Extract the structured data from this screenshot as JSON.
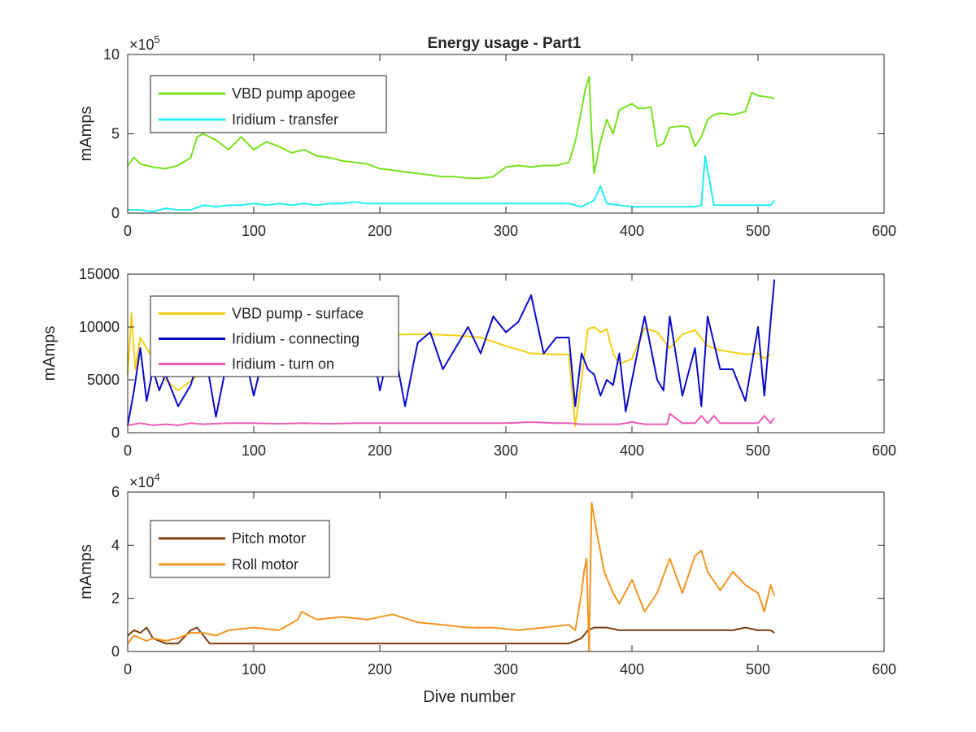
{
  "title": "Energy usage - Part1",
  "colors": {
    "vbd_apogee": "#77e21f",
    "iridium_transfer": "#22eeee",
    "vbd_surface": "#f2d014",
    "iridium_connecting": "#0a0acc",
    "iridium_turn_on": "#e85fb6",
    "pitch_motor": "#7a3e12",
    "roll_motor": "#f29520",
    "axis": "#262626"
  },
  "chart_data": [
    {
      "type": "line",
      "title": "Energy usage - Part1",
      "xlabel": "",
      "ylabel": "mAmps",
      "exponent_label": "×10",
      "exponent_power": "5",
      "xlim": [
        0,
        600
      ],
      "ylim": [
        0,
        10
      ],
      "xticks": [
        "0",
        "100",
        "200",
        "300",
        "400",
        "500",
        "600"
      ],
      "yticks": [
        "0",
        "5",
        "10"
      ],
      "legend_position": "top-left",
      "series": [
        {
          "name": "VBD pump apogee",
          "color_key": "vbd_apogee",
          "x": [
            0,
            5,
            10,
            20,
            30,
            40,
            50,
            55,
            60,
            70,
            80,
            90,
            100,
            110,
            120,
            130,
            140,
            150,
            160,
            170,
            180,
            190,
            200,
            210,
            220,
            230,
            240,
            250,
            260,
            270,
            280,
            290,
            300,
            310,
            320,
            330,
            340,
            350,
            355,
            360,
            363,
            366,
            368,
            370,
            375,
            380,
            385,
            390,
            395,
            400,
            405,
            410,
            415,
            420,
            425,
            430,
            440,
            445,
            450,
            455,
            460,
            465,
            470,
            480,
            490,
            495,
            500,
            510,
            513
          ],
          "y": [
            3.0,
            3.5,
            3.1,
            2.9,
            2.8,
            3.0,
            3.5,
            4.8,
            5.0,
            4.6,
            4.0,
            4.8,
            4.0,
            4.5,
            4.2,
            3.8,
            4.0,
            3.6,
            3.5,
            3.3,
            3.2,
            3.1,
            2.8,
            2.7,
            2.6,
            2.5,
            2.4,
            2.3,
            2.3,
            2.2,
            2.2,
            2.3,
            2.9,
            3.0,
            2.9,
            3.0,
            3.0,
            3.2,
            4.5,
            6.5,
            7.8,
            8.6,
            5.0,
            2.5,
            4.5,
            5.9,
            5.0,
            6.5,
            6.7,
            6.9,
            6.6,
            6.6,
            6.7,
            4.2,
            4.4,
            5.4,
            5.5,
            5.4,
            4.2,
            4.8,
            5.9,
            6.2,
            6.3,
            6.2,
            6.4,
            7.6,
            7.4,
            7.3,
            7.2
          ]
        },
        {
          "name": "Iridium - transfer",
          "color_key": "iridium_transfer",
          "x": [
            0,
            10,
            20,
            30,
            40,
            50,
            60,
            70,
            80,
            90,
            100,
            110,
            120,
            130,
            140,
            150,
            160,
            170,
            180,
            190,
            200,
            210,
            220,
            230,
            240,
            250,
            260,
            270,
            280,
            290,
            300,
            310,
            320,
            330,
            340,
            350,
            360,
            370,
            375,
            380,
            390,
            400,
            420,
            440,
            450,
            455,
            458,
            465,
            480,
            500,
            510,
            513
          ],
          "y": [
            0.2,
            0.2,
            0.1,
            0.3,
            0.2,
            0.2,
            0.5,
            0.4,
            0.5,
            0.5,
            0.6,
            0.5,
            0.6,
            0.5,
            0.6,
            0.5,
            0.6,
            0.6,
            0.7,
            0.6,
            0.6,
            0.6,
            0.6,
            0.6,
            0.6,
            0.6,
            0.6,
            0.6,
            0.6,
            0.6,
            0.6,
            0.6,
            0.6,
            0.6,
            0.6,
            0.6,
            0.4,
            0.8,
            1.7,
            0.6,
            0.5,
            0.4,
            0.4,
            0.4,
            0.4,
            0.5,
            3.6,
            0.5,
            0.5,
            0.5,
            0.5,
            0.8
          ]
        }
      ]
    },
    {
      "type": "line",
      "title": "",
      "xlabel": "",
      "ylabel": "mAmps",
      "xlim": [
        0,
        600
      ],
      "ylim": [
        0,
        15000
      ],
      "xticks": [
        "0",
        "100",
        "200",
        "300",
        "400",
        "500",
        "600"
      ],
      "yticks": [
        "0",
        "5000",
        "10000",
        "15000"
      ],
      "legend_position": "top-left",
      "series": [
        {
          "name": "VBD pump - surface",
          "color_key": "vbd_surface",
          "x": [
            0,
            3,
            6,
            10,
            20,
            30,
            40,
            60,
            80,
            100,
            120,
            140,
            160,
            180,
            200,
            220,
            240,
            260,
            280,
            300,
            320,
            340,
            350,
            355,
            360,
            365,
            370,
            375,
            380,
            385,
            390,
            400,
            410,
            420,
            430,
            440,
            450,
            460,
            470,
            480,
            490,
            500,
            505,
            510
          ],
          "y": [
            5500,
            11300,
            6000,
            9000,
            7000,
            5000,
            4000,
            5800,
            6500,
            7500,
            8000,
            7500,
            8500,
            9000,
            9200,
            9300,
            9300,
            9200,
            9000,
            8200,
            7500,
            7400,
            7400,
            600,
            5000,
            9800,
            10000,
            9500,
            9800,
            7500,
            6500,
            7000,
            9900,
            9500,
            8000,
            9300,
            9700,
            8200,
            7800,
            7600,
            7400,
            7500,
            7000,
            7400
          ]
        },
        {
          "name": "Iridium - connecting",
          "color_key": "iridium_connecting",
          "x": [
            0,
            5,
            10,
            15,
            20,
            25,
            30,
            40,
            50,
            60,
            70,
            80,
            90,
            100,
            110,
            120,
            130,
            140,
            150,
            160,
            170,
            180,
            190,
            200,
            210,
            220,
            230,
            240,
            250,
            260,
            270,
            280,
            290,
            300,
            310,
            320,
            330,
            340,
            350,
            355,
            360,
            365,
            370,
            375,
            380,
            385,
            390,
            395,
            400,
            410,
            420,
            425,
            430,
            440,
            450,
            455,
            460,
            470,
            480,
            490,
            495,
            500,
            505,
            510,
            513
          ],
          "y": [
            700,
            4000,
            8000,
            3000,
            6000,
            4000,
            5500,
            2500,
            4500,
            8500,
            1500,
            7500,
            9000,
            3500,
            8500,
            11000,
            9500,
            12500,
            7000,
            8500,
            9000,
            8000,
            11000,
            4000,
            9000,
            2500,
            8500,
            9500,
            6000,
            8000,
            10000,
            7500,
            11000,
            9500,
            10500,
            13000,
            7500,
            9000,
            9000,
            2500,
            7500,
            6000,
            5500,
            3500,
            5000,
            4500,
            7500,
            2000,
            5000,
            11000,
            5000,
            4000,
            11000,
            3500,
            8000,
            2500,
            11000,
            6000,
            6000,
            3000,
            6500,
            10000,
            3500,
            10500,
            14500
          ]
        },
        {
          "name": "Iridium - turn on",
          "color_key": "iridium_turn_on",
          "x": [
            0,
            10,
            20,
            30,
            40,
            50,
            60,
            80,
            100,
            120,
            140,
            160,
            180,
            200,
            220,
            240,
            260,
            280,
            300,
            320,
            340,
            350,
            360,
            370,
            380,
            390,
            400,
            410,
            420,
            428,
            430,
            440,
            450,
            455,
            460,
            465,
            470,
            480,
            490,
            500,
            505,
            510,
            513
          ],
          "y": [
            700,
            900,
            700,
            800,
            700,
            900,
            800,
            900,
            900,
            850,
            900,
            850,
            900,
            900,
            900,
            900,
            900,
            900,
            900,
            1000,
            900,
            900,
            800,
            800,
            800,
            800,
            1000,
            800,
            800,
            800,
            1800,
            900,
            900,
            1600,
            900,
            1600,
            900,
            900,
            900,
            900,
            1600,
            900,
            1400
          ]
        }
      ]
    },
    {
      "type": "line",
      "title": "",
      "xlabel": "Dive number",
      "ylabel": "mAmps",
      "exponent_label": "×10",
      "exponent_power": "4",
      "xlim": [
        0,
        600
      ],
      "ylim": [
        0,
        6
      ],
      "xticks": [
        "0",
        "100",
        "200",
        "300",
        "400",
        "500",
        "600"
      ],
      "yticks": [
        "0",
        "2",
        "4",
        "6"
      ],
      "legend_position": "top-left",
      "series": [
        {
          "name": "Pitch motor",
          "color_key": "pitch_motor",
          "x": [
            0,
            5,
            10,
            15,
            20,
            25,
            30,
            40,
            50,
            55,
            60,
            65,
            70,
            80,
            90,
            100,
            120,
            140,
            160,
            180,
            200,
            220,
            240,
            260,
            280,
            300,
            320,
            340,
            350,
            355,
            360,
            365,
            370,
            380,
            390,
            400,
            410,
            420,
            440,
            460,
            480,
            490,
            500,
            510,
            513
          ],
          "y": [
            0.6,
            0.8,
            0.7,
            0.9,
            0.5,
            0.4,
            0.3,
            0.3,
            0.8,
            0.9,
            0.6,
            0.3,
            0.3,
            0.3,
            0.3,
            0.3,
            0.3,
            0.3,
            0.3,
            0.3,
            0.3,
            0.3,
            0.3,
            0.3,
            0.3,
            0.3,
            0.3,
            0.3,
            0.3,
            0.4,
            0.5,
            0.8,
            0.9,
            0.9,
            0.8,
            0.8,
            0.8,
            0.8,
            0.8,
            0.8,
            0.8,
            0.9,
            0.8,
            0.8,
            0.7
          ]
        },
        {
          "name": "Roll motor",
          "color_key": "roll_motor",
          "x": [
            0,
            5,
            10,
            15,
            20,
            30,
            40,
            50,
            60,
            70,
            80,
            100,
            120,
            135,
            138,
            150,
            170,
            190,
            210,
            230,
            250,
            270,
            290,
            310,
            330,
            350,
            355,
            360,
            362,
            364,
            366,
            368,
            372,
            378,
            385,
            390,
            400,
            410,
            420,
            430,
            440,
            450,
            455,
            460,
            470,
            480,
            490,
            500,
            505,
            510,
            513
          ],
          "y": [
            0.3,
            0.6,
            0.5,
            0.4,
            0.5,
            0.4,
            0.5,
            0.7,
            0.7,
            0.6,
            0.8,
            0.9,
            0.8,
            1.2,
            1.5,
            1.2,
            1.3,
            1.2,
            1.4,
            1.1,
            1.0,
            0.9,
            0.9,
            0.8,
            0.9,
            1.0,
            0.8,
            2.2,
            3.0,
            3.5,
            0.0,
            5.6,
            4.5,
            3.0,
            2.2,
            1.8,
            2.7,
            1.5,
            2.2,
            3.5,
            2.2,
            3.6,
            3.8,
            3.0,
            2.3,
            3.0,
            2.5,
            2.2,
            1.5,
            2.5,
            2.1
          ]
        }
      ]
    }
  ]
}
